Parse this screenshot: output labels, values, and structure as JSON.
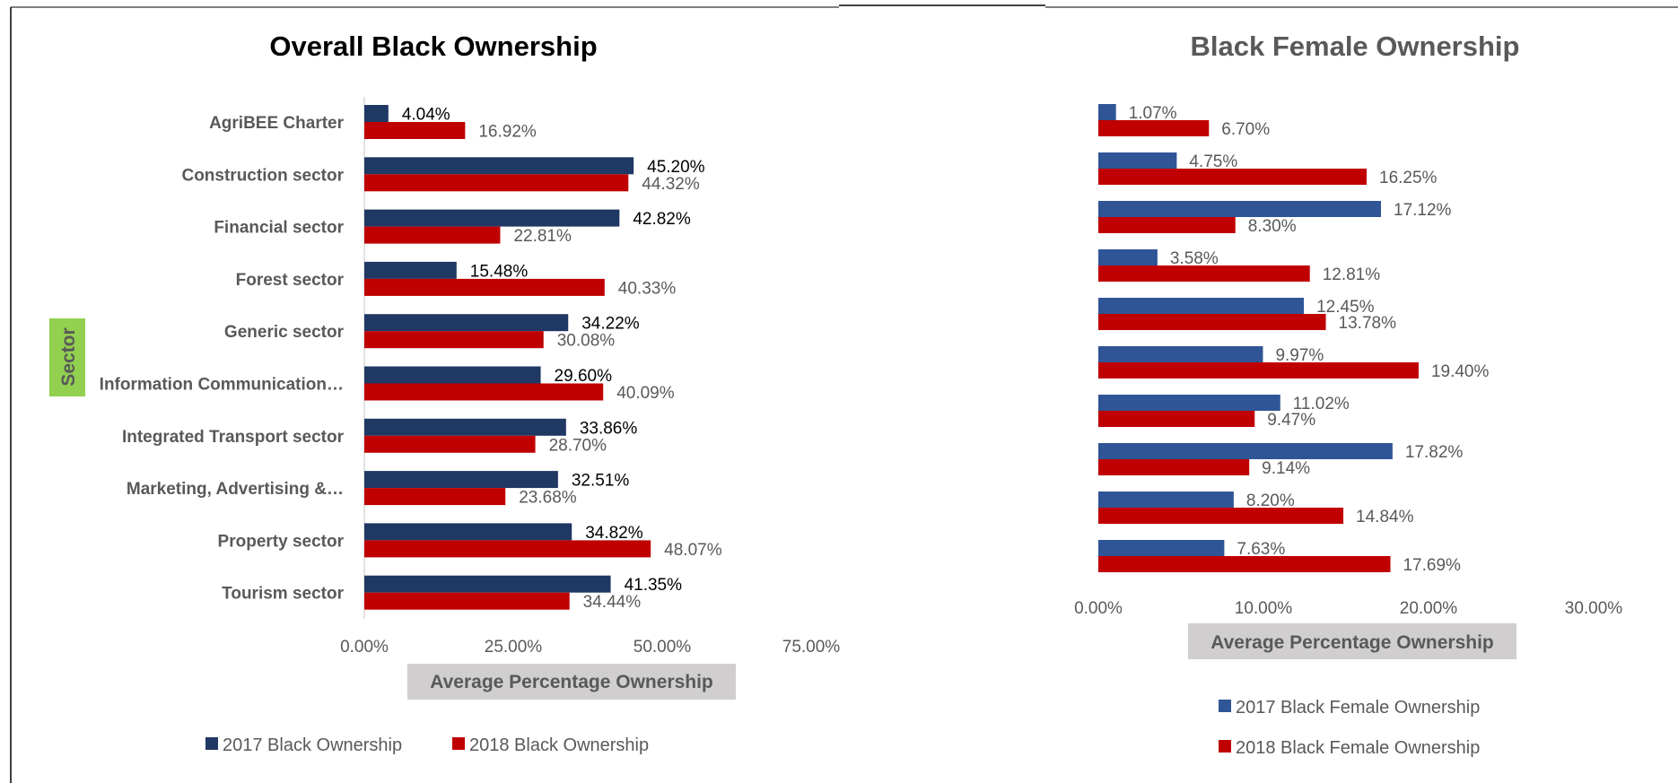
{
  "chart_data": [
    {
      "type": "bar",
      "orientation": "horizontal",
      "title": "Overall Black Ownership",
      "ylabel": "Sector",
      "xlabel": "Average Percentage Ownership",
      "categories": [
        "AgriBEE Charter",
        "Construction sector",
        "Financial sector",
        "Forest sector",
        "Generic sector",
        "Information Communication…",
        "Integrated Transport sector",
        "Marketing, Advertising &…",
        "Property sector",
        "Tourism sector"
      ],
      "series": [
        {
          "name": "2017 Black Ownership",
          "values": [
            4.04,
            45.2,
            42.82,
            15.48,
            34.22,
            29.6,
            33.86,
            32.51,
            34.82,
            41.35
          ]
        },
        {
          "name": "2018 Black Ownership",
          "values": [
            16.92,
            44.32,
            22.81,
            40.33,
            30.08,
            40.09,
            28.7,
            23.68,
            48.07,
            34.44
          ]
        }
      ],
      "data_labels": [
        [
          "4.04%",
          "45.20%",
          "42.82%",
          "15.48%",
          "34.22%",
          "29.60%",
          "33.86%",
          "32.51%",
          "34.82%",
          "41.35%"
        ],
        [
          "16.92%",
          "44.32%",
          "22.81%",
          "40.33%",
          "30.08%",
          "40.09%",
          "28.70%",
          "23.68%",
          "48.07%",
          "34.44%"
        ]
      ],
      "xlim": [
        0,
        75
      ],
      "xticks": [
        "0.00%",
        "25.00%",
        "50.00%",
        "75.00%"
      ],
      "colors": [
        "#1f3864",
        "#c00000"
      ],
      "legend_position": "bottom",
      "grid": false
    },
    {
      "type": "bar",
      "orientation": "horizontal",
      "title": "Black Female Ownership",
      "xlabel": "Average Percentage Ownership",
      "series": [
        {
          "name": "2017 Black Female Ownership",
          "values": [
            1.07,
            4.75,
            17.12,
            3.58,
            12.45,
            9.97,
            11.02,
            17.82,
            8.2,
            7.63
          ]
        },
        {
          "name": "2018 Black Female Ownership",
          "values": [
            6.7,
            16.25,
            8.3,
            12.81,
            13.78,
            19.4,
            9.47,
            9.14,
            14.84,
            17.69
          ]
        }
      ],
      "data_labels": [
        [
          "1.07%",
          "4.75%",
          "17.12%",
          "3.58%",
          "12.45%",
          "9.97%",
          "11.02%",
          "17.82%",
          "8.20%",
          "7.63%"
        ],
        [
          "6.70%",
          "16.25%",
          "8.30%",
          "12.81%",
          "13.78%",
          "19.40%",
          "9.47%",
          "9.14%",
          "14.84%",
          "17.69%"
        ]
      ],
      "xlim": [
        0,
        30
      ],
      "xticks": [
        "0.00%",
        "10.00%",
        "20.00%",
        "30.00%"
      ],
      "colors": [
        "#2f5597",
        "#c00000"
      ],
      "legend_position": "bottom",
      "grid": false
    }
  ]
}
